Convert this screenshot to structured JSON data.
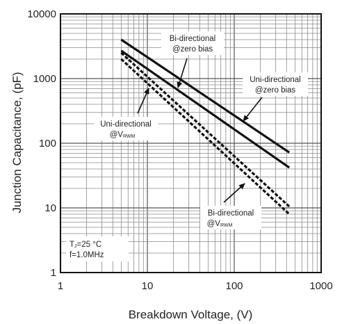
{
  "chart_data": {
    "type": "line",
    "xscale": "log",
    "yscale": "log",
    "xlim": [
      1,
      1000
    ],
    "ylim": [
      1,
      10000
    ],
    "xlabel": "Breakdown Voltage, (V)",
    "ylabel": "Junction Capacitance, (pF)",
    "x_ticks": [
      "1",
      "10",
      "100",
      "1000"
    ],
    "y_ticks": [
      "1",
      "10",
      "100",
      "1000",
      "10000"
    ],
    "grid": "on",
    "series": [
      {
        "x": [
          5,
          430
        ],
        "y": [
          4000,
          72
        ],
        "style": "solid"
      },
      {
        "x": [
          5,
          430
        ],
        "y": [
          2700,
          42
        ],
        "style": "solid"
      },
      {
        "x": [
          5,
          430
        ],
        "y": [
          2500,
          10.5
        ],
        "style": "dashed"
      },
      {
        "x": [
          5,
          430
        ],
        "y": [
          2000,
          8
        ],
        "style": "dashed"
      }
    ],
    "annotations": [
      {
        "line1": "Bi-directional",
        "line2_main": "@zero bias",
        "line2_sub": ""
      },
      {
        "line1": "Uni-directional",
        "line2_main": "@zero bias",
        "line2_sub": ""
      },
      {
        "line1": "Uni-directional",
        "line2_main": "@V",
        "line2_sub": "RWM"
      },
      {
        "line1": "Bi-directional",
        "line2_main": "@V",
        "line2_sub": "RWM"
      }
    ],
    "conditions": {
      "line1_main": "T",
      "line1_sub": "J",
      "line1_rest": "=25 °C",
      "line2": "f=1.0MHz"
    }
  }
}
